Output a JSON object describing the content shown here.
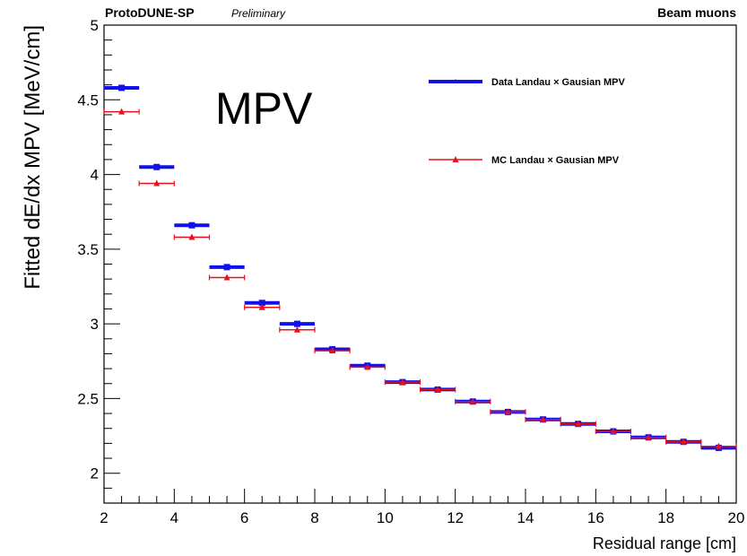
{
  "chart_data": {
    "type": "scatter",
    "header_left": "ProtoDUNE-SP",
    "header_left_note": "Preliminary",
    "header_right": "Beam muons",
    "annotation": "MPV",
    "xlabel": "Residual range [cm]",
    "ylabel": "Fitted dE/dx MPV [MeV/cm]",
    "xlim": [
      2,
      20
    ],
    "ylim": [
      1.8,
      5.0
    ],
    "x_ticks": [
      2,
      4,
      6,
      8,
      10,
      12,
      14,
      16,
      18,
      20
    ],
    "y_ticks": [
      2,
      2.5,
      3,
      3.5,
      4,
      4.5,
      5
    ],
    "grid": false,
    "legend_position": "top-right",
    "series": [
      {
        "name": "Data Landau × Gausian MPV",
        "color": "#1010e8",
        "marker": "square",
        "x": [
          2.5,
          3.5,
          4.5,
          5.5,
          6.5,
          7.5,
          8.5,
          9.5,
          10.5,
          11.5,
          12.5,
          13.5,
          14.5,
          15.5,
          16.5,
          17.5,
          18.5,
          19.5
        ],
        "x_err": [
          0.5,
          0.5,
          0.5,
          0.5,
          0.5,
          0.5,
          0.5,
          0.5,
          0.5,
          0.5,
          0.5,
          0.5,
          0.5,
          0.5,
          0.5,
          0.5,
          0.5,
          0.5
        ],
        "y": [
          4.58,
          4.05,
          3.66,
          3.38,
          3.14,
          3.0,
          2.83,
          2.72,
          2.61,
          2.56,
          2.48,
          2.41,
          2.36,
          2.33,
          2.28,
          2.24,
          2.21,
          2.17
        ]
      },
      {
        "name": "MC Landau × Gausian MPV",
        "color": "#e8101a",
        "marker": "triangle",
        "x": [
          2.5,
          3.5,
          4.5,
          5.5,
          6.5,
          7.5,
          8.5,
          9.5,
          10.5,
          11.5,
          12.5,
          13.5,
          14.5,
          15.5,
          16.5,
          17.5,
          18.5,
          19.5
        ],
        "x_err": [
          0.5,
          0.5,
          0.5,
          0.5,
          0.5,
          0.5,
          0.5,
          0.5,
          0.5,
          0.5,
          0.5,
          0.5,
          0.5,
          0.5,
          0.5,
          0.5,
          0.5,
          0.5
        ],
        "y": [
          4.42,
          3.94,
          3.58,
          3.31,
          3.11,
          2.96,
          2.82,
          2.71,
          2.61,
          2.56,
          2.48,
          2.41,
          2.36,
          2.33,
          2.28,
          2.24,
          2.21,
          2.18
        ]
      }
    ]
  }
}
